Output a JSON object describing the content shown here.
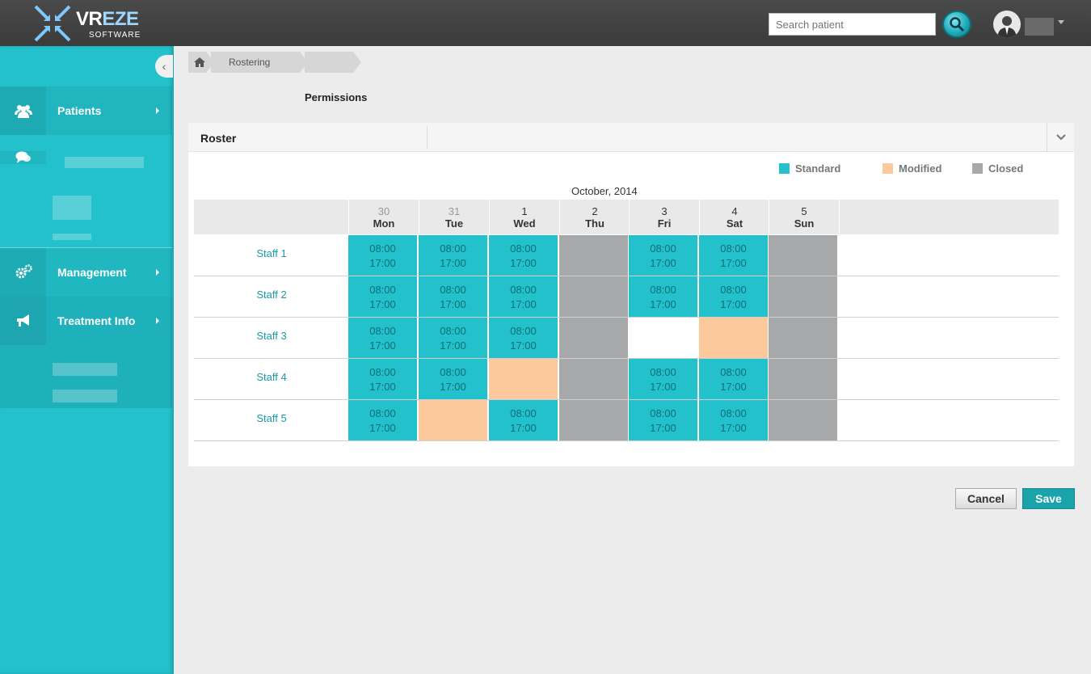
{
  "header": {
    "logo_main": "VR",
    "logo_accent": "EZE",
    "logo_sub": "SOFTWARE",
    "search_placeholder": "Search patient",
    "icons": {
      "search": "search-icon",
      "user": "user-avatar-icon",
      "caret": "chevron-down-icon"
    }
  },
  "sidebar": {
    "items": [
      {
        "label": "Patients",
        "icon": "users-icon"
      },
      {
        "label": "",
        "icon": "chat-icon"
      },
      {
        "label": "Management",
        "icon": "gears-icon"
      },
      {
        "label": "Treatment Info",
        "icon": "megaphone-icon"
      }
    ]
  },
  "breadcrumb": {
    "home_icon": "home-icon",
    "items": [
      "Rostering"
    ]
  },
  "page": {
    "title": "Permissions"
  },
  "panel": {
    "title": "Roster",
    "toggle_icon": "chevron-down-icon"
  },
  "legend": [
    {
      "label": "Standard",
      "color": "#22c1cb"
    },
    {
      "label": "Modified",
      "color": "#fcc99c"
    },
    {
      "label": "Closed",
      "color": "#a7a8aa"
    }
  ],
  "roster": {
    "month": "October,  2014",
    "days": [
      {
        "num": "30",
        "name": "Mon",
        "muted": true
      },
      {
        "num": "31",
        "name": "Tue",
        "muted": true
      },
      {
        "num": "1",
        "name": "Wed",
        "muted": false
      },
      {
        "num": "2",
        "name": "Thu",
        "muted": false
      },
      {
        "num": "3",
        "name": "Fri",
        "muted": false
      },
      {
        "num": "4",
        "name": "Sat",
        "muted": false
      },
      {
        "num": "5",
        "name": "Sun",
        "muted": false
      }
    ],
    "staff": [
      {
        "name": "Staff 1",
        "cells": [
          {
            "type": "standard",
            "start": "08:00",
            "end": "17:00"
          },
          {
            "type": "standard",
            "start": "08:00",
            "end": "17:00"
          },
          {
            "type": "standard",
            "start": "08:00",
            "end": "17:00"
          },
          {
            "type": "closed"
          },
          {
            "type": "standard",
            "start": "08:00",
            "end": "17:00"
          },
          {
            "type": "standard",
            "start": "08:00",
            "end": "17:00"
          },
          {
            "type": "closed"
          }
        ]
      },
      {
        "name": "Staff 2",
        "cells": [
          {
            "type": "standard",
            "start": "08:00",
            "end": "17:00"
          },
          {
            "type": "standard",
            "start": "08:00",
            "end": "17:00"
          },
          {
            "type": "standard",
            "start": "08:00",
            "end": "17:00"
          },
          {
            "type": "closed"
          },
          {
            "type": "standard",
            "start": "08:00",
            "end": "17:00"
          },
          {
            "type": "standard",
            "start": "08:00",
            "end": "17:00"
          },
          {
            "type": "closed"
          }
        ]
      },
      {
        "name": "Staff 3",
        "cells": [
          {
            "type": "standard",
            "start": "08:00",
            "end": "17:00"
          },
          {
            "type": "standard",
            "start": "08:00",
            "end": "17:00"
          },
          {
            "type": "standard",
            "start": "08:00",
            "end": "17:00"
          },
          {
            "type": "closed"
          },
          {
            "type": "empty"
          },
          {
            "type": "modified"
          },
          {
            "type": "closed"
          }
        ]
      },
      {
        "name": "Staff 4",
        "cells": [
          {
            "type": "standard",
            "start": "08:00",
            "end": "17:00"
          },
          {
            "type": "standard",
            "start": "08:00",
            "end": "17:00"
          },
          {
            "type": "modified"
          },
          {
            "type": "closed"
          },
          {
            "type": "standard",
            "start": "08:00",
            "end": "17:00"
          },
          {
            "type": "standard",
            "start": "08:00",
            "end": "17:00"
          },
          {
            "type": "closed"
          }
        ]
      },
      {
        "name": "Staff 5",
        "cells": [
          {
            "type": "standard",
            "start": "08:00",
            "end": "17:00"
          },
          {
            "type": "modified"
          },
          {
            "type": "standard",
            "start": "08:00",
            "end": "17:00"
          },
          {
            "type": "closed"
          },
          {
            "type": "standard",
            "start": "08:00",
            "end": "17:00"
          },
          {
            "type": "standard",
            "start": "08:00",
            "end": "17:00"
          },
          {
            "type": "closed"
          }
        ]
      }
    ]
  },
  "actions": {
    "cancel_label": "Cancel",
    "save_label": "Save"
  }
}
